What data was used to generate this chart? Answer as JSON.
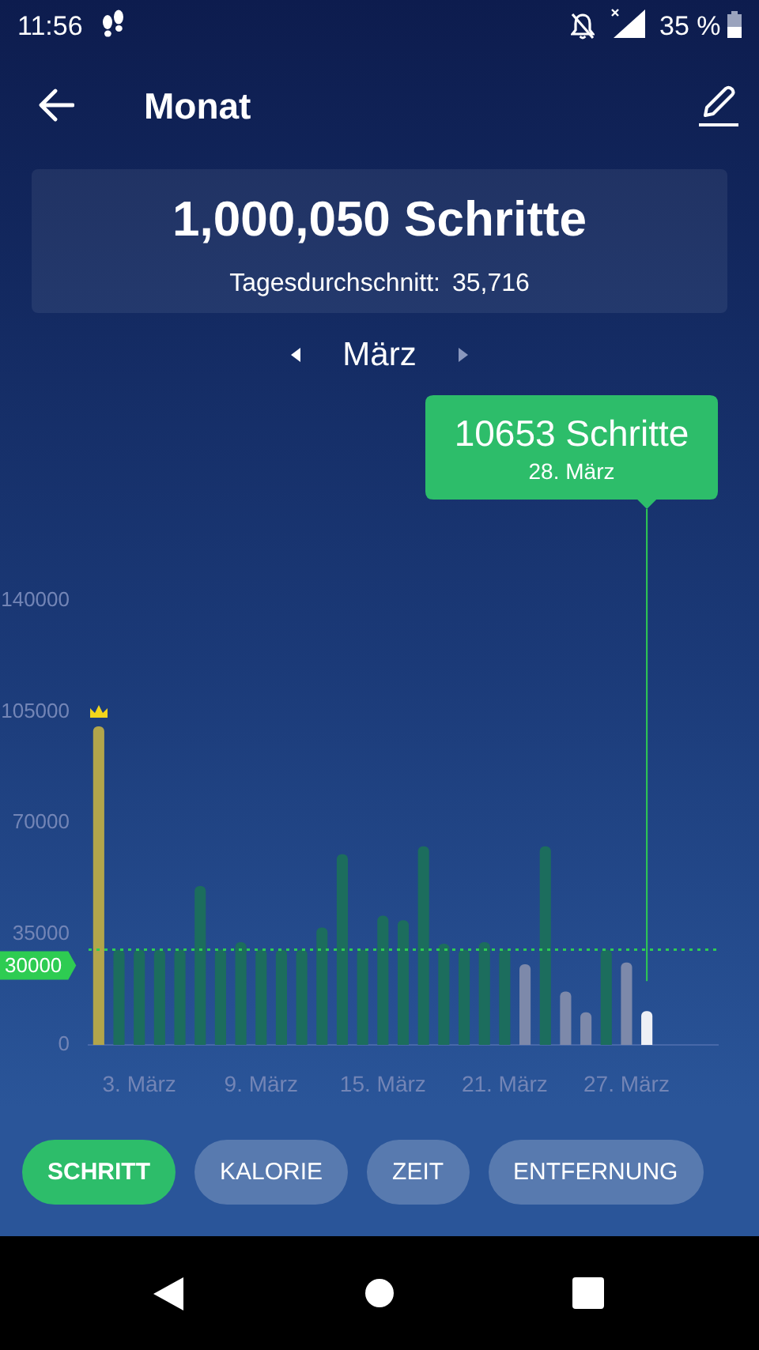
{
  "chart_data": {
    "type": "bar",
    "title": "1,000,050 Schritte",
    "subtitle": "Tagesdurchschnitt: 35,716",
    "categories": [
      null,
      null,
      "3. März",
      null,
      null,
      null,
      null,
      null,
      "9. März",
      null,
      null,
      null,
      null,
      null,
      "15. März",
      null,
      null,
      null,
      null,
      null,
      "21. März",
      null,
      null,
      null,
      null,
      null,
      "27. März",
      null,
      null,
      null,
      null
    ],
    "values": [
      100400,
      30000,
      30000,
      30000,
      30000,
      50100,
      30000,
      32400,
      30000,
      30000,
      30000,
      37000,
      60100,
      30000,
      40700,
      39300,
      62600,
      31900,
      30000,
      32400,
      30000,
      25400,
      62600,
      16800,
      10300,
      30000,
      26000,
      10653,
      null,
      null,
      null
    ],
    "colors": [
      "#b2a54b",
      "#1c6d5d",
      "#1c6d5d",
      "#1c6d5d",
      "#1c6d5d",
      "#1c6d5d",
      "#1c6d5d",
      "#1c6d5d",
      "#1c6d5d",
      "#1c6d5d",
      "#1c6d5d",
      "#1c6d5d",
      "#1c6d5d",
      "#1c6d5d",
      "#1c6d5d",
      "#1c6d5d",
      "#1c6d5d",
      "#1c6d5d",
      "#1c6d5d",
      "#1c6d5d",
      "#1c6d5d",
      "#7d89aa",
      "#1c6d5d",
      "#7d89aa",
      "#7d89aa",
      "#1c6d5d",
      "#7d89aa",
      "#eef0f6",
      null,
      null,
      null
    ],
    "ylim": [
      0,
      140000
    ],
    "yticks": [
      0,
      35000,
      70000,
      105000,
      140000
    ],
    "ref_lines": [
      {
        "axis": "y",
        "value": 30000,
        "label": "30000",
        "color": "#2ecc52",
        "line_style": "dotted"
      }
    ],
    "annotations": [
      "11:56",
      "35 %",
      "Monat",
      "März",
      "SCHRITT",
      "KALORIE",
      "ZEIT",
      "ENTFERNUNG",
      "10653 Schritte",
      "28. März"
    ]
  }
}
